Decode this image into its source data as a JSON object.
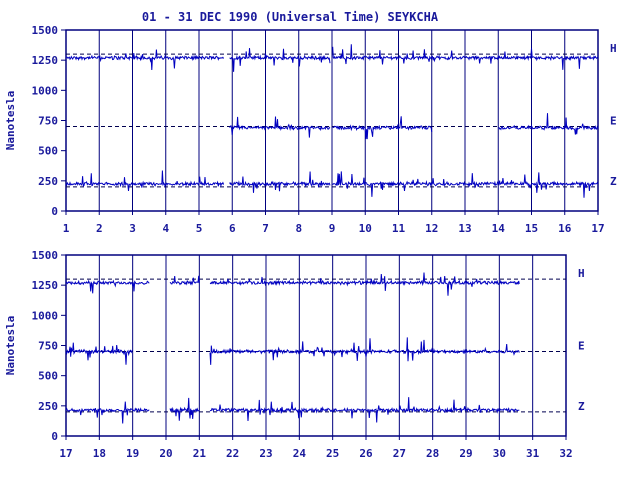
{
  "title": "01 - 31 DEC 1990 (Universal Time) SEYKCHA",
  "colors": {
    "axis": "#00007f",
    "text": "#1a1a9c",
    "trace": "#0000c0",
    "background": "#ffffff"
  },
  "chart_data": [
    {
      "type": "line",
      "panel": "top",
      "ylabel": "Nanotesla",
      "ylim": [
        0,
        1500
      ],
      "yticks": [
        "0",
        "250",
        "500",
        "750",
        "1000",
        "1250",
        "1500"
      ],
      "xlim": [
        1,
        17
      ],
      "xticks": [
        "1",
        "2",
        "3",
        "4",
        "5",
        "6",
        "7",
        "8",
        "9",
        "10",
        "11",
        "12",
        "13",
        "14",
        "15",
        "16",
        "17"
      ],
      "series": [
        {
          "name": "H",
          "baseline": 1300,
          "level": 1270
        },
        {
          "name": "E",
          "baseline": 700,
          "level": 690
        },
        {
          "name": "Z",
          "baseline": 200,
          "level": 225
        }
      ],
      "gaps": [
        [
          5.75,
          5.9
        ],
        [
          8.95,
          9.0
        ]
      ],
      "e_missing": [
        [
          1,
          5.8
        ],
        [
          12.0,
          14.0
        ]
      ]
    },
    {
      "type": "line",
      "panel": "bottom",
      "ylabel": "Nanotesla",
      "ylim": [
        0,
        1500
      ],
      "yticks": [
        "0",
        "250",
        "500",
        "750",
        "1000",
        "1250",
        "1500"
      ],
      "xlim": [
        17,
        32
      ],
      "xticks": [
        "17",
        "18",
        "19",
        "20",
        "21",
        "22",
        "23",
        "24",
        "25",
        "26",
        "27",
        "28",
        "29",
        "30",
        "31",
        "32"
      ],
      "series": [
        {
          "name": "H",
          "baseline": 1300,
          "level": 1270
        },
        {
          "name": "E",
          "baseline": 700,
          "level": 700
        },
        {
          "name": "Z",
          "baseline": 200,
          "level": 215
        }
      ],
      "gaps": [
        [
          19.5,
          20.1
        ],
        [
          21.0,
          21.3
        ],
        [
          30.6,
          32
        ]
      ],
      "e_missing": [
        [
          19.0,
          21.3
        ]
      ]
    }
  ]
}
